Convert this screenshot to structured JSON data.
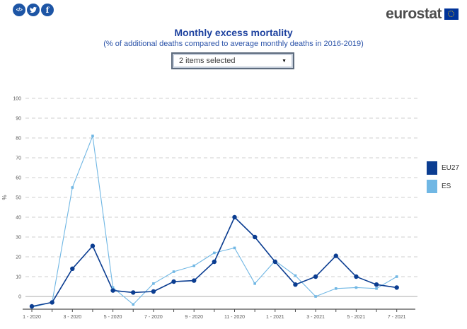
{
  "header": {
    "share": {
      "embed_glyph": "</>",
      "facebook_glyph": "f"
    },
    "logo": {
      "text": "eurostat"
    }
  },
  "title": "Monthly excess mortality",
  "subtitle": "(% of additional deaths compared to average monthly deaths in 2016-2019)",
  "filter": {
    "selected_label": "2 items selected",
    "arrow_glyph": "▼"
  },
  "chart_data": {
    "type": "line",
    "title": "Monthly excess mortality",
    "ylabel": "%",
    "ylim": [
      -7,
      105
    ],
    "yticks": [
      0,
      10,
      20,
      30,
      40,
      50,
      60,
      70,
      80,
      90,
      100
    ],
    "grid": "horizontal-dashed",
    "x_label_every": 2,
    "x": [
      "1 - 2020",
      "2 - 2020",
      "3 - 2020",
      "4 - 2020",
      "5 - 2020",
      "6 - 2020",
      "7 - 2020",
      "8 - 2020",
      "9 - 2020",
      "10 - 2020",
      "11 - 2020",
      "12 - 2020",
      "1 - 2021",
      "2 - 2021",
      "3 - 2021",
      "4 - 2021",
      "5 - 2021",
      "6 - 2021",
      "7 - 2021"
    ],
    "series": [
      {
        "name": "EU27",
        "color": "#0b3d91",
        "marker": "circle",
        "values": [
          -5,
          -3,
          14,
          25.5,
          3,
          2,
          2.5,
          7.5,
          8,
          17.5,
          40,
          30,
          17.5,
          6,
          10,
          20.5,
          10,
          6,
          4.5
        ]
      },
      {
        "name": "ES",
        "color": "#70b7e4",
        "marker": "square",
        "values": [
          -5.5,
          -3,
          55,
          81,
          4.5,
          -4,
          6.5,
          12.5,
          15.5,
          22,
          24.5,
          6.5,
          18,
          10.5,
          0,
          4,
          4.5,
          4,
          10
        ]
      }
    ],
    "legend_position": "right"
  },
  "legend": {
    "items": [
      {
        "label": "EU27",
        "color": "#0b3d91"
      },
      {
        "label": "ES",
        "color": "#70b7e4"
      }
    ]
  },
  "colors": {
    "accent_blue": "#1d55a5",
    "title_blue": "#1e429f",
    "subtitle_blue": "#2a52a8",
    "logo_text_gray": "#4d4d4d",
    "flag_blue": "#003399",
    "flag_stars_yellow": "#ffcc00",
    "gridline": "#cfcfcf",
    "zero_line": "#ababab",
    "axis": "#4d4d4d",
    "tick_text": "#595959"
  }
}
